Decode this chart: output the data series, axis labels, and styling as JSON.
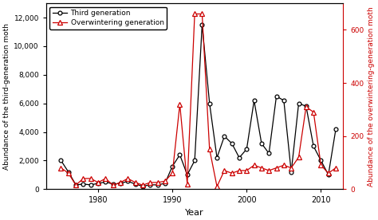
{
  "years": [
    1975,
    1976,
    1977,
    1978,
    1979,
    1980,
    1981,
    1982,
    1983,
    1984,
    1985,
    1986,
    1987,
    1988,
    1989,
    1990,
    1991,
    1992,
    1993,
    1994,
    1995,
    1996,
    1997,
    1998,
    1999,
    2000,
    2001,
    2002,
    2003,
    2004,
    2005,
    2006,
    2007,
    2008,
    2009,
    2010,
    2011,
    2012
  ],
  "third_gen": [
    2000,
    1200,
    300,
    350,
    300,
    400,
    500,
    350,
    400,
    550,
    350,
    200,
    300,
    300,
    400,
    1600,
    2400,
    1000,
    2000,
    11500,
    6000,
    2200,
    3700,
    3200,
    2200,
    2800,
    6200,
    3200,
    2500,
    6500,
    6200,
    1200,
    6000,
    5800,
    3000,
    2000,
    1000,
    4200
  ],
  "overwinter_gen": [
    80,
    60,
    15,
    40,
    40,
    25,
    40,
    15,
    25,
    40,
    25,
    15,
    25,
    25,
    30,
    60,
    320,
    20,
    660,
    660,
    150,
    10,
    70,
    60,
    70,
    70,
    90,
    80,
    70,
    80,
    90,
    80,
    120,
    310,
    290,
    90,
    60,
    80
  ],
  "black_color": "#000000",
  "red_color": "#cc0000",
  "xlabel": "Year",
  "ylabel_left": "Abundance of the third-generation moth",
  "ylabel_right": "Abundance of the overwintering-generation moth",
  "legend_third": "Third generation",
  "legend_overwinter": "Overwintering generation",
  "ylim_left": [
    0,
    13000
  ],
  "ylim_right": [
    0,
    700
  ],
  "xlim": [
    1973,
    2013
  ],
  "yticks_left": [
    0,
    2000,
    4000,
    6000,
    8000,
    10000,
    12000
  ],
  "yticks_right": [
    0,
    200,
    400,
    600
  ],
  "xticks": [
    1980,
    1990,
    2000,
    2010
  ],
  "bg_color": "#ffffff"
}
